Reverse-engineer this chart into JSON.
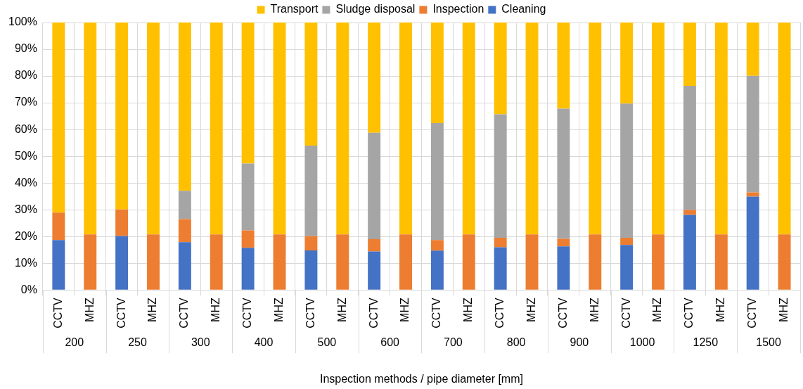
{
  "chart_data": {
    "type": "bar",
    "stacked": true,
    "xlabel": "Inspection methods / pipe diameter [mm]",
    "categories": [
      "CCTV",
      "MHZ",
      "CCTV",
      "MHZ",
      "CCTV",
      "MHZ",
      "CCTV",
      "MHZ",
      "CCTV",
      "MHZ",
      "CCTV",
      "MHZ",
      "CCTV",
      "MHZ",
      "CCTV",
      "MHZ",
      "CCTV",
      "MHZ",
      "CCTV",
      "MHZ",
      "CCTV",
      "MHZ",
      "CCTV",
      "MHZ"
    ],
    "annotations": [
      "200",
      "250",
      "300",
      "400",
      "500",
      "600",
      "700",
      "800",
      "900",
      "1000",
      "1250",
      "1500"
    ],
    "series": [
      {
        "name": "Cleaning",
        "color": "#4472c4",
        "values": [
          18.7,
          0,
          20.2,
          0,
          17.9,
          0,
          15.8,
          0,
          14.8,
          0,
          14.4,
          0,
          14.7,
          0,
          16.0,
          0,
          16.3,
          0,
          16.8,
          0,
          28.1,
          0,
          34.9,
          0
        ]
      },
      {
        "name": "Inspection",
        "color": "#ed7d31",
        "values": [
          10.2,
          20.8,
          9.9,
          20.8,
          8.6,
          20.8,
          6.5,
          20.8,
          5.3,
          20.8,
          4.6,
          20.8,
          4.0,
          20.8,
          3.5,
          20.8,
          2.8,
          20.8,
          2.7,
          20.8,
          1.8,
          20.8,
          1.6,
          20.8
        ]
      },
      {
        "name": "Sludge disposal",
        "color": "#a5a5a5",
        "values": [
          0,
          0,
          0,
          0,
          10.6,
          0,
          25.0,
          0,
          33.9,
          0,
          39.8,
          0,
          43.7,
          0,
          46.2,
          0,
          48.7,
          0,
          50.2,
          0,
          46.4,
          0,
          43.6,
          0
        ]
      },
      {
        "name": "Transport",
        "color": "#ffc000",
        "values": [
          71.1,
          79.2,
          69.9,
          79.2,
          62.9,
          79.2,
          52.7,
          79.2,
          46.0,
          79.2,
          41.2,
          79.2,
          37.6,
          79.2,
          34.3,
          79.2,
          32.2,
          79.2,
          30.3,
          79.2,
          23.7,
          79.2,
          19.9,
          79.2
        ]
      }
    ],
    "ylim": [
      0,
      100
    ],
    "yticks": [
      {
        "value": 0,
        "label": "0%"
      },
      {
        "value": 10,
        "label": "10%"
      },
      {
        "value": 20,
        "label": "20%"
      },
      {
        "value": 30,
        "label": "30%"
      },
      {
        "value": 40,
        "label": "40%"
      },
      {
        "value": 50,
        "label": "50%"
      },
      {
        "value": 60,
        "label": "60%"
      },
      {
        "value": 70,
        "label": "70%"
      },
      {
        "value": 80,
        "label": "80%"
      },
      {
        "value": 90,
        "label": "90%"
      },
      {
        "value": 100,
        "label": "100%"
      }
    ],
    "grid": true,
    "legend": "top"
  }
}
